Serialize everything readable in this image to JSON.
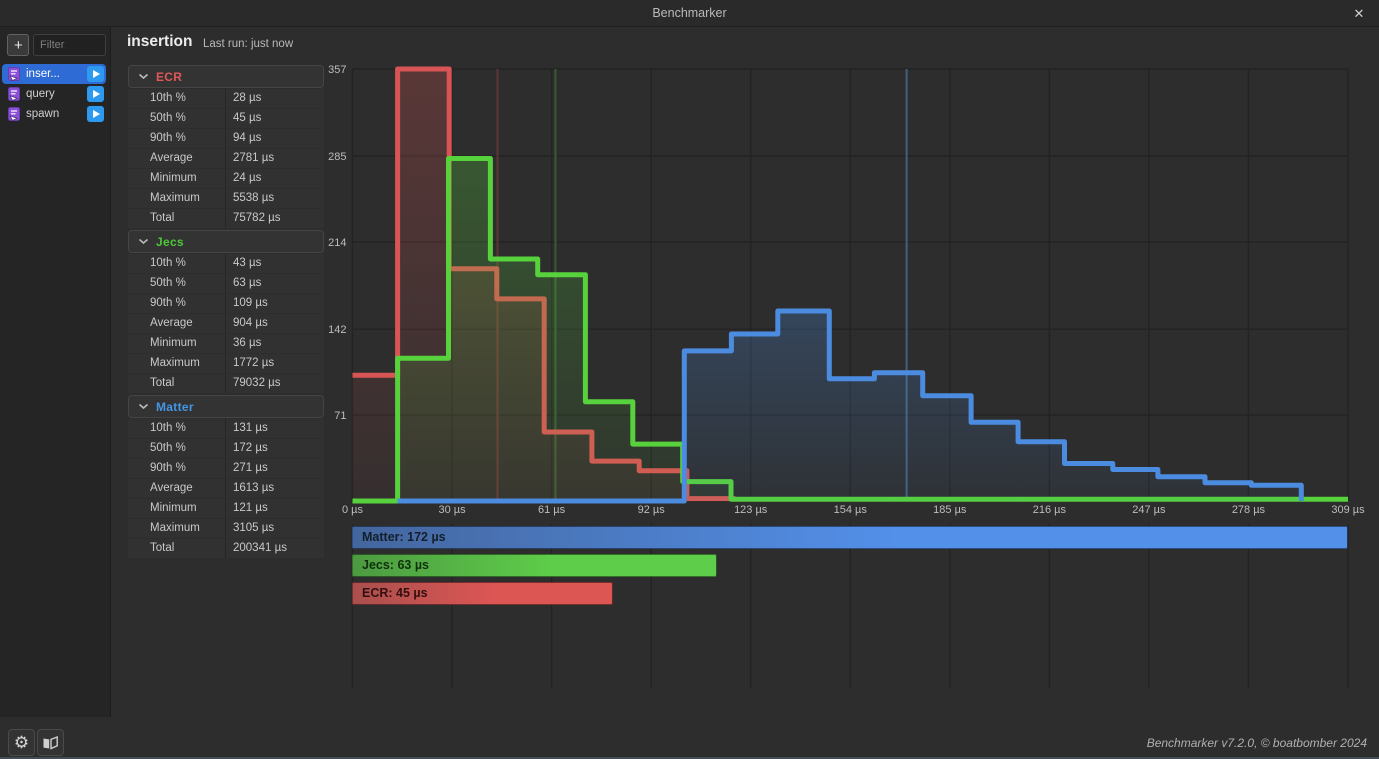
{
  "window": {
    "title": "Benchmarker",
    "close_icon": "✕"
  },
  "sidebar": {
    "add_button_label": "+",
    "filter_placeholder": "Filter",
    "items": [
      {
        "label": "inser...",
        "selected": true
      },
      {
        "label": "query",
        "selected": false
      },
      {
        "label": "spawn",
        "selected": false
      }
    ]
  },
  "header": {
    "title": "insertion",
    "last_run": "Last run: just now"
  },
  "stats": {
    "sections": [
      {
        "name": "ECR",
        "color": "#e25757",
        "rows": [
          {
            "label": "10th %",
            "value": "28 µs"
          },
          {
            "label": "50th %",
            "value": "45 µs"
          },
          {
            "label": "90th %",
            "value": "94 µs"
          },
          {
            "label": "Average",
            "value": "2781 µs"
          },
          {
            "label": "Minimum",
            "value": "24 µs"
          },
          {
            "label": "Maximum",
            "value": "5538 µs"
          },
          {
            "label": "Total",
            "value": "75782 µs"
          }
        ]
      },
      {
        "name": "Jecs",
        "color": "#50c73a",
        "rows": [
          {
            "label": "10th %",
            "value": "43 µs"
          },
          {
            "label": "50th %",
            "value": "63 µs"
          },
          {
            "label": "90th %",
            "value": "109 µs"
          },
          {
            "label": "Average",
            "value": "904 µs"
          },
          {
            "label": "Minimum",
            "value": "36 µs"
          },
          {
            "label": "Maximum",
            "value": "1772 µs"
          },
          {
            "label": "Total",
            "value": "79032 µs"
          }
        ]
      },
      {
        "name": "Matter",
        "color": "#4496e6",
        "rows": [
          {
            "label": "10th %",
            "value": "131 µs"
          },
          {
            "label": "50th %",
            "value": "172 µs"
          },
          {
            "label": "90th %",
            "value": "271 µs"
          },
          {
            "label": "Average",
            "value": "1613 µs"
          },
          {
            "label": "Minimum",
            "value": "121 µs"
          },
          {
            "label": "Maximum",
            "value": "3105 µs"
          },
          {
            "label": "Total",
            "value": "200341 µs"
          }
        ]
      }
    ]
  },
  "chart_data": {
    "type": "bar",
    "subtype": "step-histogram of run times",
    "x_unit": "µs",
    "x_max": 309,
    "x_tick_labels": [
      "0 µs",
      "30 µs",
      "61 µs",
      "92 µs",
      "123 µs",
      "154 µs",
      "185 µs",
      "216 µs",
      "247 µs",
      "278 µs",
      "309 µs"
    ],
    "y_ticks": [
      71,
      142,
      214,
      285,
      357
    ],
    "y_max": 357,
    "grid": true,
    "series": [
      {
        "name": "ECR",
        "color": "#d95454",
        "median_marker_color": "#5e3636",
        "median": 45,
        "steps": [
          [
            0,
            104
          ],
          [
            14,
            357
          ],
          [
            30,
            192
          ],
          [
            44.8,
            167
          ],
          [
            59.5,
            57
          ],
          [
            74.3,
            33
          ],
          [
            89,
            25
          ],
          [
            103.8,
            2
          ],
          [
            118.5,
            0
          ]
        ]
      },
      {
        "name": "Jecs",
        "color": "#57d13c",
        "median_marker_color": "#3a5a33",
        "median": 63,
        "steps": [
          [
            0,
            0
          ],
          [
            14,
            118
          ],
          [
            29.8,
            283
          ],
          [
            42.8,
            200
          ],
          [
            57.5,
            187
          ],
          [
            72.3,
            82
          ],
          [
            87,
            47
          ],
          [
            102.5,
            16
          ],
          [
            117.5,
            1.5
          ],
          [
            309,
            1.5
          ]
        ]
      },
      {
        "name": "Matter",
        "color": "#4b8ce0",
        "median_marker_color": "#40617f",
        "median": 172,
        "steps": [
          [
            14,
            0
          ],
          [
            103,
            124
          ],
          [
            117.6,
            138
          ],
          [
            132,
            157
          ],
          [
            148,
            101
          ],
          [
            162,
            106
          ],
          [
            177,
            87
          ],
          [
            192,
            65
          ],
          [
            206.6,
            49
          ],
          [
            221,
            31
          ],
          [
            236,
            26
          ],
          [
            250,
            20
          ],
          [
            264.6,
            15
          ],
          [
            279,
            13
          ],
          [
            294.5,
            0
          ]
        ]
      }
    ]
  },
  "legend_bars": {
    "max_value": 172,
    "bars": [
      {
        "label": "Matter: 172 µs",
        "value": 172,
        "color_from": "#44669e",
        "color_to": "#5390ea",
        "text_color": "#141f2b"
      },
      {
        "label": "Jecs: 63 µs",
        "value": 63,
        "color_from": "#4d9a41",
        "color_to": "#5ecd4a",
        "text_color": "#10300d"
      },
      {
        "label": "ECR: 45 µs",
        "value": 45,
        "color_from": "#aa4f4d",
        "color_to": "#dc5654",
        "text_color": "#33100f"
      }
    ]
  },
  "toolbar": {
    "settings_icon": "gear-icon",
    "docs_icon": "open-book-icon",
    "gear_glyph": "⚙"
  },
  "footer": {
    "credit": "Benchmarker v7.2.0, © boatbomber 2024"
  }
}
